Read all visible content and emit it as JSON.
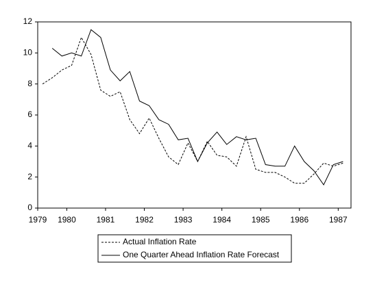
{
  "chart_data": {
    "type": "line",
    "x": [
      1979.375,
      1979.625,
      1979.875,
      1980.125,
      1980.375,
      1980.625,
      1980.875,
      1981.125,
      1981.375,
      1981.625,
      1981.875,
      1982.125,
      1982.375,
      1982.625,
      1982.875,
      1983.125,
      1983.375,
      1983.625,
      1983.875,
      1984.125,
      1984.375,
      1984.625,
      1984.875,
      1985.125,
      1985.375,
      1985.625,
      1985.875,
      1986.125,
      1986.375,
      1986.625,
      1986.875,
      1987.125
    ],
    "series": [
      {
        "name": "Actual Inflation Rate",
        "color": "#000000",
        "dash": true,
        "values": [
          8.0,
          8.4,
          8.9,
          9.2,
          11.0,
          9.9,
          7.6,
          7.2,
          7.5,
          5.7,
          4.8,
          5.8,
          4.5,
          3.3,
          2.8,
          4.2,
          3.0,
          4.3,
          3.4,
          3.3,
          2.7,
          4.6,
          2.5,
          2.3,
          2.3,
          2.0,
          1.6,
          1.6,
          2.2,
          2.9,
          2.7,
          2.9
        ]
      },
      {
        "name": "One Quarter Ahead Inflation Rate Forecast",
        "color": "#000000",
        "dash": false,
        "values": [
          null,
          10.3,
          9.8,
          10.0,
          9.8,
          11.5,
          11.0,
          8.9,
          8.2,
          8.8,
          6.9,
          6.6,
          5.7,
          5.4,
          4.4,
          4.5,
          3.0,
          4.2,
          4.9,
          4.1,
          4.6,
          4.4,
          4.5,
          2.8,
          2.7,
          2.7,
          4.0,
          3.0,
          2.4,
          1.5,
          2.8,
          3.0
        ]
      }
    ],
    "xlim": [
      1979.25,
      1987.33
    ],
    "xticks": [
      {
        "value": 1979.25,
        "label": "1979"
      },
      1980,
      1981,
      1982,
      1983,
      1984,
      1985,
      1986,
      1987
    ],
    "ylim": [
      0,
      12
    ],
    "yticks": [
      0,
      2,
      4,
      6,
      8,
      10,
      12
    ],
    "grid": false,
    "legend": "bottom"
  }
}
